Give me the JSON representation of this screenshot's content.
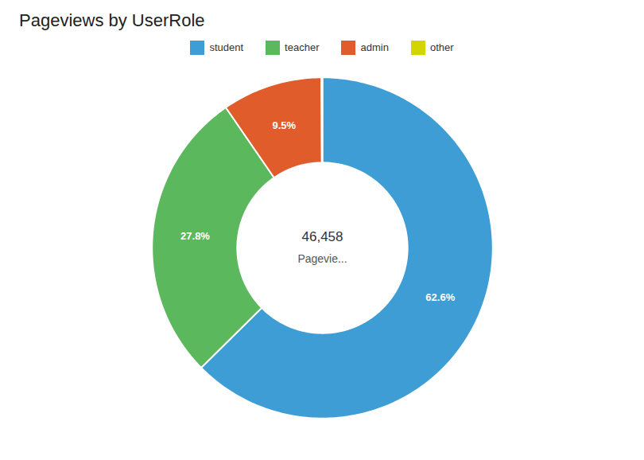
{
  "chart_data": {
    "type": "donut",
    "title": "Pageviews by UserRole",
    "categories": [
      "student",
      "teacher",
      "admin",
      "other"
    ],
    "values": [
      62.6,
      27.8,
      9.5,
      0.1
    ],
    "colors": [
      "#3d9dd4",
      "#5cb85c",
      "#e05c2b",
      "#d4d400"
    ],
    "data_labels": true,
    "value_labels": [
      "62.6%",
      "27.8%",
      "9.5%",
      null
    ],
    "annotations": [
      "46,458",
      "Pagevie..."
    ],
    "legend": "top"
  }
}
